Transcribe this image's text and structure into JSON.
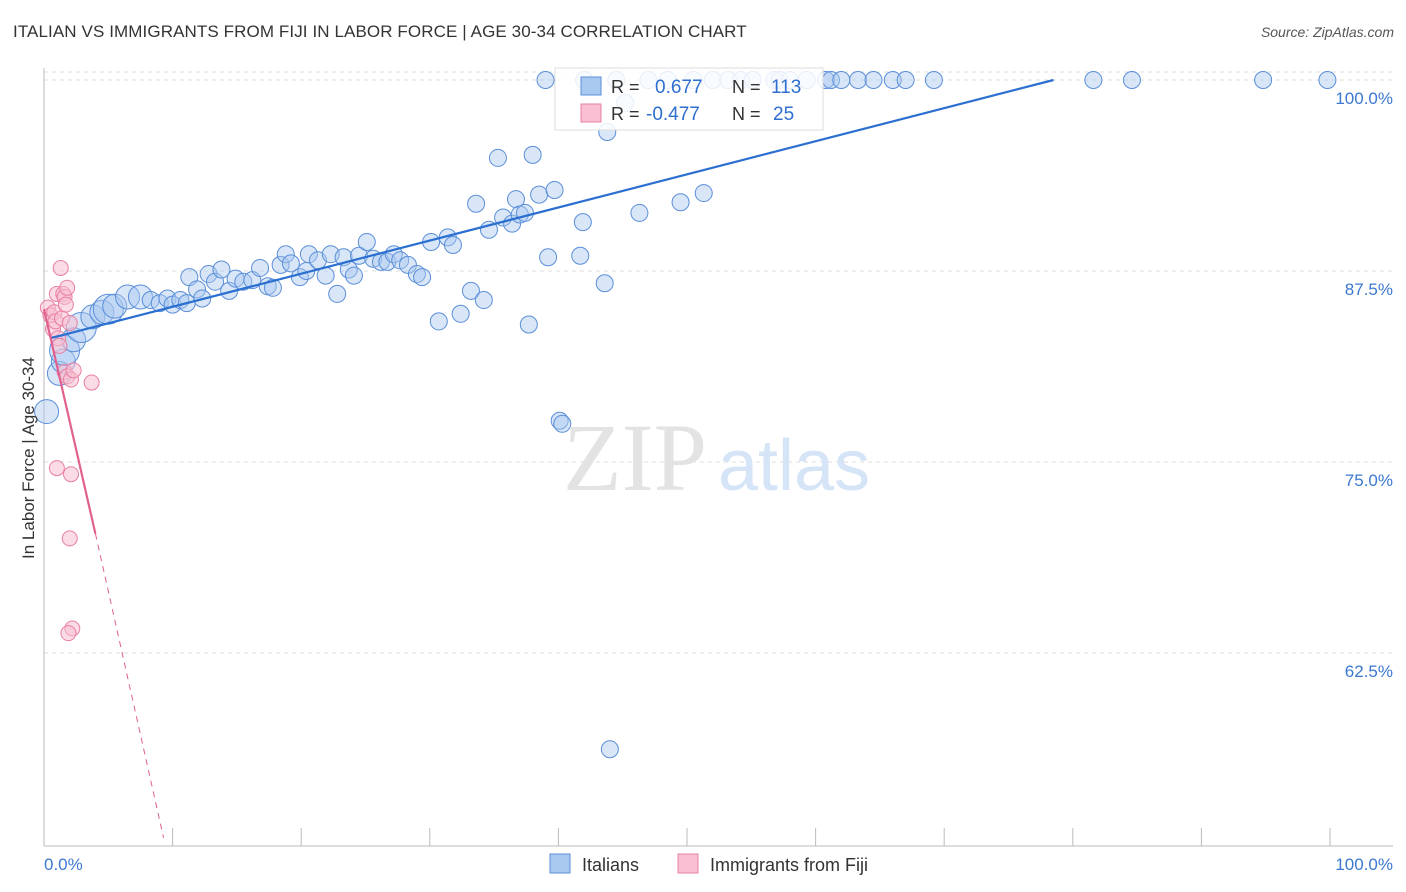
{
  "title": "ITALIAN VS IMMIGRANTS FROM FIJI IN LABOR FORCE | AGE 30-34 CORRELATION CHART",
  "source": "Source: ZipAtlas.com",
  "watermark": {
    "zip": "ZIP",
    "atlas": "atlas"
  },
  "colors": {
    "blue_fill": "#a8c8f0",
    "blue_stroke": "#5b8fd9",
    "blue_line": "#2b6fd0",
    "pink_fill": "#f8c0d2",
    "pink_stroke": "#e87fa2",
    "pink_line": "#e0608f",
    "axis_text": "#3b78d0",
    "grid": "#dedede"
  },
  "stats": {
    "r_label": "R =",
    "n_label": "N =",
    "italians": {
      "r": "0.677",
      "n": "113"
    },
    "fiji": {
      "r": "-0.477",
      "n": "25"
    }
  },
  "chart_data": {
    "type": "scatter",
    "title": "ITALIAN VS IMMIGRANTS FROM FIJI IN LABOR FORCE | AGE 30-34 CORRELATION CHART",
    "xlabel": "",
    "ylabel": "In Labor Force | Age 30-34",
    "xlim": [
      0,
      100
    ],
    "ylim": [
      50,
      100.8
    ],
    "x_tick_labels": {
      "left": "0.0%",
      "right": "100.0%"
    },
    "y_ticks": [
      {
        "value": 100.0,
        "label": "100.0%"
      },
      {
        "value": 87.5,
        "label": "87.5%"
      },
      {
        "value": 75.0,
        "label": "75.0%"
      },
      {
        "value": 62.5,
        "label": "62.5%"
      }
    ],
    "legend": [
      "Italians",
      "Immigrants from Fiji"
    ],
    "series": [
      {
        "name": "Italians",
        "trend": {
          "x": [
            0.5,
            78.5
          ],
          "y": [
            83.1,
            100.0
          ]
        },
        "points": [
          [
            0.2,
            78.3,
            2
          ],
          [
            1.2,
            80.8,
            2
          ],
          [
            1.5,
            81.6,
            2
          ],
          [
            1.6,
            82.3,
            3
          ],
          [
            2.3,
            83.0,
            2
          ],
          [
            2.9,
            83.8,
            3
          ],
          [
            3.8,
            84.5,
            2
          ],
          [
            4.5,
            84.8,
            2
          ],
          [
            5.0,
            85.0,
            3
          ],
          [
            5.5,
            85.2,
            2
          ],
          [
            6.5,
            85.8,
            2
          ],
          [
            7.5,
            85.8,
            2
          ],
          [
            8.3,
            85.6,
            1
          ],
          [
            9.0,
            85.4,
            1
          ],
          [
            9.6,
            85.7,
            1
          ],
          [
            10.0,
            85.3,
            1
          ],
          [
            10.6,
            85.6,
            1
          ],
          [
            11.1,
            85.4,
            1
          ],
          [
            11.3,
            87.1,
            1
          ],
          [
            11.9,
            86.3,
            1
          ],
          [
            12.3,
            85.7,
            1
          ],
          [
            12.8,
            87.3,
            1
          ],
          [
            13.3,
            86.8,
            1
          ],
          [
            13.8,
            87.6,
            1
          ],
          [
            14.4,
            86.2,
            1
          ],
          [
            14.9,
            87.0,
            1
          ],
          [
            15.5,
            86.8,
            1
          ],
          [
            16.2,
            86.9,
            1
          ],
          [
            16.8,
            87.7,
            1
          ],
          [
            17.4,
            86.5,
            1
          ],
          [
            17.8,
            86.4,
            1
          ],
          [
            18.4,
            87.9,
            1
          ],
          [
            18.8,
            88.6,
            1
          ],
          [
            19.2,
            88.0,
            1
          ],
          [
            19.9,
            87.1,
            1
          ],
          [
            20.4,
            87.5,
            1
          ],
          [
            20.6,
            88.6,
            1
          ],
          [
            21.3,
            88.2,
            1
          ],
          [
            21.9,
            87.2,
            1
          ],
          [
            22.3,
            88.6,
            1
          ],
          [
            22.8,
            86.0,
            1
          ],
          [
            23.3,
            88.4,
            1
          ],
          [
            23.7,
            87.6,
            1
          ],
          [
            24.1,
            87.2,
            1
          ],
          [
            24.5,
            88.5,
            1
          ],
          [
            25.1,
            89.4,
            1
          ],
          [
            25.6,
            88.3,
            1
          ],
          [
            26.2,
            88.1,
            1
          ],
          [
            26.7,
            88.1,
            1
          ],
          [
            27.2,
            88.6,
            1
          ],
          [
            27.7,
            88.2,
            1
          ],
          [
            28.3,
            87.9,
            1
          ],
          [
            29.0,
            87.3,
            1
          ],
          [
            29.4,
            87.1,
            1
          ],
          [
            30.1,
            89.4,
            1
          ],
          [
            30.7,
            84.2,
            1
          ],
          [
            31.4,
            89.7,
            1
          ],
          [
            31.8,
            89.2,
            1
          ],
          [
            32.4,
            84.7,
            1
          ],
          [
            33.2,
            86.2,
            1
          ],
          [
            33.6,
            91.9,
            1
          ],
          [
            34.2,
            85.6,
            1
          ],
          [
            34.6,
            90.2,
            1
          ],
          [
            35.3,
            94.9,
            1
          ],
          [
            35.7,
            91.0,
            1
          ],
          [
            36.4,
            90.6,
            1
          ],
          [
            36.7,
            92.2,
            1
          ],
          [
            37.0,
            91.2,
            1
          ],
          [
            37.4,
            91.3,
            1
          ],
          [
            37.7,
            84.0,
            1
          ],
          [
            38.0,
            95.1,
            1
          ],
          [
            38.5,
            92.5,
            1
          ],
          [
            39.2,
            88.4,
            1
          ],
          [
            39.7,
            92.8,
            1
          ],
          [
            40.1,
            77.7,
            1
          ],
          [
            40.3,
            77.5,
            1
          ],
          [
            41.7,
            88.5,
            1
          ],
          [
            41.9,
            90.7,
            1
          ],
          [
            43.6,
            86.7,
            1
          ],
          [
            43.8,
            96.6,
            1
          ],
          [
            44.0,
            56.2,
            1
          ],
          [
            45.2,
            98.5,
            1
          ],
          [
            46.3,
            91.3,
            1
          ],
          [
            47.0,
            100.0,
            1
          ],
          [
            49.5,
            92.0,
            1
          ],
          [
            51.3,
            92.6,
            1
          ],
          [
            52.0,
            100.0,
            1
          ],
          [
            53.2,
            100.0,
            1
          ],
          [
            54.2,
            100.0,
            1
          ],
          [
            55.1,
            100.0,
            1
          ],
          [
            56.8,
            100.0,
            1
          ],
          [
            57.2,
            100.0,
            1
          ],
          [
            59.3,
            100.0,
            1
          ],
          [
            60.8,
            100.0,
            1
          ],
          [
            61.2,
            100.0,
            1
          ],
          [
            63.3,
            100.0,
            1
          ],
          [
            66.0,
            100.0,
            1
          ],
          [
            69.2,
            100.0,
            1
          ],
          [
            84.6,
            100.0,
            1
          ],
          [
            94.8,
            100.0,
            1
          ],
          [
            99.8,
            100.0,
            1
          ],
          [
            39.0,
            100.0,
            1
          ],
          [
            42.0,
            100.0,
            1
          ],
          [
            44.5,
            100.0,
            1
          ],
          [
            48.5,
            100.0,
            1
          ],
          [
            50.5,
            100.0,
            1
          ],
          [
            58.0,
            100.0,
            1
          ],
          [
            62.0,
            100.0,
            1
          ],
          [
            64.5,
            100.0,
            1
          ],
          [
            67.0,
            100.0,
            1
          ],
          [
            81.6,
            100.0,
            1
          ]
        ]
      },
      {
        "name": "Immigrants from Fiji",
        "trend": {
          "x": [
            0.0,
            4.0
          ],
          "y": [
            85.0,
            70.3
          ],
          "dashed_to": {
            "x": 9.3,
            "y": 50.4
          }
        },
        "points": [
          [
            0.3,
            85.1
          ],
          [
            0.5,
            84.6
          ],
          [
            0.7,
            83.7
          ],
          [
            0.8,
            84.8
          ],
          [
            0.9,
            84.2
          ],
          [
            1.0,
            86.0
          ],
          [
            1.1,
            83.1
          ],
          [
            1.2,
            82.6
          ],
          [
            1.4,
            84.4
          ],
          [
            1.3,
            87.7
          ],
          [
            1.5,
            86.0
          ],
          [
            1.6,
            85.8
          ],
          [
            1.7,
            85.3
          ],
          [
            1.8,
            86.4
          ],
          [
            2.0,
            84.1
          ],
          [
            1.6,
            80.9
          ],
          [
            1.8,
            80.6
          ],
          [
            2.1,
            80.4
          ],
          [
            2.3,
            81.0
          ],
          [
            3.7,
            80.2
          ],
          [
            1.0,
            74.6
          ],
          [
            2.1,
            74.2
          ],
          [
            2.0,
            70.0
          ],
          [
            2.2,
            64.1
          ],
          [
            1.9,
            63.8
          ]
        ]
      }
    ]
  }
}
